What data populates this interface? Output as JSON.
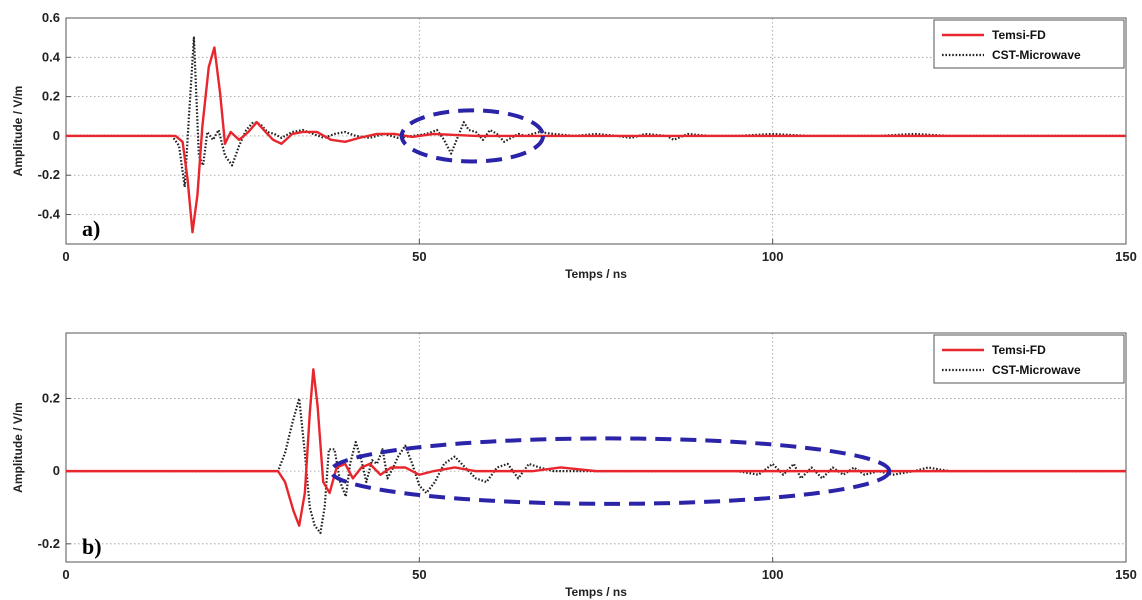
{
  "chart_data": [
    {
      "type": "line",
      "panel_label": "a)",
      "xlabel": "Temps / ns",
      "ylabel": "Amplitude / V/m",
      "xlim": [
        0,
        150
      ],
      "ylim": [
        -0.55,
        0.6
      ],
      "xticks": [
        0,
        50,
        100,
        150
      ],
      "xtick_labels": [
        "0",
        "50",
        "100",
        "150"
      ],
      "yticks": [
        0.6,
        0.4,
        0.2,
        0,
        -0.2,
        -0.4
      ],
      "ytick_labels": [
        "0.6",
        "0.4",
        "0.2",
        "0",
        "-0.2",
        "-0.4"
      ],
      "grid": true,
      "legend_position": "top-right",
      "series": [
        {
          "name": "Temsi-FD",
          "color": "#e8262d",
          "style": "solid",
          "points": [
            [
              0,
              0
            ],
            [
              15.5,
              0
            ],
            [
              16.5,
              -0.03
            ],
            [
              17.2,
              -0.22
            ],
            [
              17.9,
              -0.49
            ],
            [
              18.6,
              -0.3
            ],
            [
              19.3,
              0.05
            ],
            [
              20.2,
              0.35
            ],
            [
              21,
              0.45
            ],
            [
              21.8,
              0.22
            ],
            [
              22.5,
              -0.04
            ],
            [
              23.3,
              0.02
            ],
            [
              24.5,
              -0.02
            ],
            [
              25.8,
              0.02
            ],
            [
              27,
              0.07
            ],
            [
              28,
              0.03
            ],
            [
              29.3,
              -0.02
            ],
            [
              30.5,
              -0.04
            ],
            [
              32,
              0.01
            ],
            [
              33.5,
              0.02
            ],
            [
              35.5,
              0.02
            ],
            [
              37.5,
              -0.02
            ],
            [
              39.5,
              -0.03
            ],
            [
              41.5,
              -0.01
            ],
            [
              44,
              0.01
            ],
            [
              46.5,
              0.01
            ],
            [
              49,
              -0.005
            ],
            [
              52,
              0.01
            ],
            [
              55,
              0.005
            ],
            [
              58,
              0
            ],
            [
              62,
              0
            ],
            [
              66,
              0
            ],
            [
              70,
              0
            ],
            [
              75,
              0
            ],
            [
              80,
              0
            ],
            [
              90,
              0
            ],
            [
              100,
              0
            ],
            [
              110,
              0
            ],
            [
              120,
              0
            ],
            [
              130,
              0
            ],
            [
              140,
              0
            ],
            [
              150,
              0
            ]
          ]
        },
        {
          "name": "CST-Microwave",
          "color": "#222222",
          "style": "dotted",
          "points": [
            [
              0,
              0
            ],
            [
              15,
              0
            ],
            [
              16,
              -0.05
            ],
            [
              16.8,
              -0.26
            ],
            [
              17.4,
              0.1
            ],
            [
              18.1,
              0.5
            ],
            [
              18.8,
              -0.1
            ],
            [
              19.4,
              -0.15
            ],
            [
              20,
              0.02
            ],
            [
              20.8,
              -0.02
            ],
            [
              21.6,
              0.03
            ],
            [
              22.5,
              -0.1
            ],
            [
              23.5,
              -0.15
            ],
            [
              24.5,
              -0.05
            ],
            [
              25.5,
              0.03
            ],
            [
              26.5,
              0.07
            ],
            [
              27.5,
              0.06
            ],
            [
              28.5,
              0.02
            ],
            [
              29.5,
              0.01
            ],
            [
              30.5,
              -0.01
            ],
            [
              32,
              0.02
            ],
            [
              33.5,
              0.03
            ],
            [
              35,
              0.01
            ],
            [
              36.5,
              -0.01
            ],
            [
              38,
              0.01
            ],
            [
              39.5,
              0.02
            ],
            [
              41,
              0
            ],
            [
              43,
              -0.01
            ],
            [
              45,
              0.01
            ],
            [
              47,
              -0.01
            ],
            [
              49,
              0
            ],
            [
              51,
              0.01
            ],
            [
              52.5,
              0.03
            ],
            [
              53.5,
              -0.02
            ],
            [
              54.5,
              -0.09
            ],
            [
              55.5,
              0
            ],
            [
              56.3,
              0.07
            ],
            [
              57,
              0.03
            ],
            [
              58,
              0.02
            ],
            [
              59,
              -0.02
            ],
            [
              60,
              0.03
            ],
            [
              61,
              0.01
            ],
            [
              62,
              -0.03
            ],
            [
              63,
              -0.01
            ],
            [
              64,
              0.01
            ],
            [
              65,
              0
            ],
            [
              67,
              0.02
            ],
            [
              69,
              0.01
            ],
            [
              72,
              0
            ],
            [
              75,
              0.01
            ],
            [
              78,
              0
            ],
            [
              80,
              -0.01
            ],
            [
              82,
              0.01
            ],
            [
              85,
              0
            ],
            [
              86,
              -0.02
            ],
            [
              88,
              0.01
            ],
            [
              91,
              0
            ],
            [
              95,
              0
            ],
            [
              100,
              0.01
            ],
            [
              105,
              0
            ],
            [
              110,
              0
            ],
            [
              115,
              0
            ],
            [
              120,
              0.01
            ],
            [
              125,
              0
            ],
            [
              130,
              0
            ],
            [
              140,
              0
            ],
            [
              150,
              0
            ]
          ]
        }
      ]
    },
    {
      "type": "line",
      "panel_label": "b)",
      "xlabel": "Temps / ns",
      "ylabel": "Amplitude / V/m",
      "xlim": [
        0,
        150
      ],
      "ylim": [
        -0.25,
        0.38
      ],
      "xticks": [
        0,
        50,
        100,
        150
      ],
      "xtick_labels": [
        "0",
        "50",
        "100",
        "150"
      ],
      "yticks": [
        0.2,
        0,
        -0.2
      ],
      "ytick_labels": [
        "0.2",
        "0",
        "-0.2"
      ],
      "grid": true,
      "legend_position": "top-right",
      "series": [
        {
          "name": "Temsi-FD",
          "color": "#e8262d",
          "style": "solid",
          "points": [
            [
              0,
              0
            ],
            [
              30,
              0
            ],
            [
              31,
              -0.03
            ],
            [
              32.2,
              -0.11
            ],
            [
              33,
              -0.15
            ],
            [
              33.8,
              -0.06
            ],
            [
              34.5,
              0.16
            ],
            [
              35,
              0.28
            ],
            [
              35.6,
              0.18
            ],
            [
              36.4,
              -0.03
            ],
            [
              37.3,
              -0.06
            ],
            [
              38.3,
              0.01
            ],
            [
              39.5,
              0.02
            ],
            [
              40.6,
              -0.02
            ],
            [
              41.8,
              0.01
            ],
            [
              43,
              0.02
            ],
            [
              44.5,
              -0.01
            ],
            [
              46,
              0.01
            ],
            [
              48,
              0.01
            ],
            [
              50,
              -0.01
            ],
            [
              52,
              0
            ],
            [
              55,
              0.01
            ],
            [
              58,
              0
            ],
            [
              62,
              0
            ],
            [
              66,
              0
            ],
            [
              70,
              0.01
            ],
            [
              75,
              0
            ],
            [
              80,
              0
            ],
            [
              90,
              0
            ],
            [
              100,
              0
            ],
            [
              110,
              0
            ],
            [
              120,
              0
            ],
            [
              130,
              0
            ],
            [
              140,
              0
            ],
            [
              150,
              0
            ]
          ]
        },
        {
          "name": "CST-Microwave",
          "color": "#222222",
          "style": "dotted",
          "points": [
            [
              0,
              0
            ],
            [
              30,
              0
            ],
            [
              31,
              0.05
            ],
            [
              32,
              0.13
            ],
            [
              33,
              0.2
            ],
            [
              33.8,
              0.05
            ],
            [
              34.5,
              -0.1
            ],
            [
              35.2,
              -0.15
            ],
            [
              36,
              -0.17
            ],
            [
              36.6,
              -0.1
            ],
            [
              37.2,
              0.06
            ],
            [
              38,
              0.06
            ],
            [
              38.8,
              -0.03
            ],
            [
              39.6,
              -0.07
            ],
            [
              40.2,
              0.02
            ],
            [
              41,
              0.08
            ],
            [
              41.8,
              0.03
            ],
            [
              42.5,
              -0.03
            ],
            [
              43.3,
              0.03
            ],
            [
              44,
              0.02
            ],
            [
              44.8,
              0.06
            ],
            [
              45.5,
              -0.02
            ],
            [
              46.3,
              0.01
            ],
            [
              47,
              0.04
            ],
            [
              48,
              0.07
            ],
            [
              49,
              0.02
            ],
            [
              50,
              -0.04
            ],
            [
              51,
              -0.06
            ],
            [
              52.2,
              -0.03
            ],
            [
              53.5,
              0.02
            ],
            [
              55,
              0.04
            ],
            [
              56.5,
              0.01
            ],
            [
              58,
              -0.02
            ],
            [
              59.5,
              -0.03
            ],
            [
              61,
              0.01
            ],
            [
              62.5,
              0.02
            ],
            [
              64,
              -0.02
            ],
            [
              65.5,
              0.02
            ],
            [
              67,
              0.01
            ],
            [
              69,
              0
            ],
            [
              72,
              0
            ],
            [
              75,
              0
            ],
            [
              80,
              0
            ],
            [
              85,
              0
            ],
            [
              90,
              0
            ],
            [
              95,
              0
            ],
            [
              98,
              -0.01
            ],
            [
              100,
              0.02
            ],
            [
              101.5,
              -0.01
            ],
            [
              103,
              0.02
            ],
            [
              104,
              -0.02
            ],
            [
              105.5,
              0.01
            ],
            [
              107,
              -0.02
            ],
            [
              108.5,
              0.01
            ],
            [
              110,
              -0.01
            ],
            [
              111.5,
              0.01
            ],
            [
              113,
              -0.01
            ],
            [
              115,
              0
            ],
            [
              117,
              -0.01
            ],
            [
              120,
              0
            ],
            [
              122,
              0.01
            ],
            [
              125,
              0
            ],
            [
              130,
              0
            ],
            [
              140,
              0
            ],
            [
              150,
              0
            ]
          ]
        }
      ]
    }
  ],
  "highlights": [
    {
      "panel": 0,
      "shape": "dashed-ellipse",
      "color": "#2b24a8",
      "x_center": 57.5,
      "y_center": 0,
      "x_radius": 10,
      "y_radius": 0.13
    },
    {
      "panel": 1,
      "shape": "dashed-ellipse",
      "color": "#2b24a8",
      "x_center": 77,
      "y_center": 0,
      "x_radius": 39.5,
      "y_radius": 0.09
    }
  ]
}
